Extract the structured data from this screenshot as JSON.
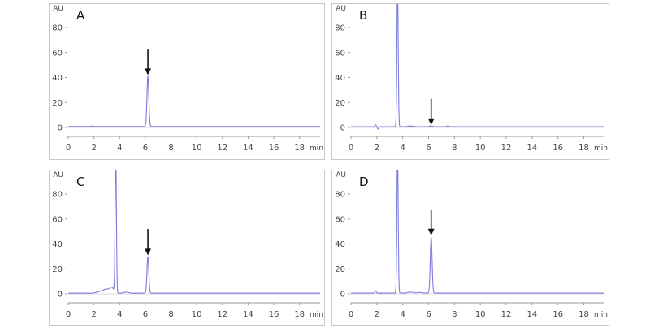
{
  "chart_data": [
    {
      "type": "line",
      "panel_label": "A",
      "ylabel": "AU",
      "xlabel": "min",
      "xlim": [
        0,
        19.6
      ],
      "ylim": [
        -4,
        100
      ],
      "xticks": [
        0,
        2,
        4,
        6,
        8,
        10,
        12,
        14,
        16,
        18
      ],
      "yticks": [
        0,
        20,
        40,
        60,
        80
      ],
      "series_color": "#7b7be0",
      "baseline": 0.8,
      "peaks": [
        {
          "rt": 1.9,
          "height": 0.6,
          "width": 0.05
        },
        {
          "rt": 6.2,
          "height": 40.5,
          "width": 0.07
        }
      ],
      "arrow": {
        "x": 6.2,
        "y_top": 63,
        "y_tip": 42
      }
    },
    {
      "type": "line",
      "panel_label": "B",
      "ylabel": "AU",
      "xlabel": "min",
      "xlim": [
        0,
        19.6
      ],
      "ylim": [
        -4,
        100
      ],
      "xticks": [
        0,
        2,
        4,
        6,
        8,
        10,
        12,
        14,
        16,
        18
      ],
      "yticks": [
        0,
        20,
        40,
        60,
        80
      ],
      "series_color": "#7b7be0",
      "baseline": 0.6,
      "peaks": [
        {
          "rt": 1.9,
          "height": 1.5,
          "width": 0.05
        },
        {
          "rt": 2.1,
          "height": -2,
          "width": 0.05
        },
        {
          "rt": 3.6,
          "height": 115,
          "width": 0.05
        },
        {
          "rt": 4.6,
          "height": 0.6,
          "width": 0.2
        },
        {
          "rt": 6.2,
          "height": 0.8,
          "width": 0.1
        },
        {
          "rt": 7.5,
          "height": 0.7,
          "width": 0.08
        }
      ],
      "arrow": {
        "x": 6.2,
        "y_top": 23,
        "y_tip": 2
      }
    },
    {
      "type": "line",
      "panel_label": "C",
      "ylabel": "AU",
      "xlabel": "min",
      "xlim": [
        0,
        19.6
      ],
      "ylim": [
        -4,
        100
      ],
      "xticks": [
        0,
        2,
        4,
        6,
        8,
        10,
        12,
        14,
        16,
        18
      ],
      "yticks": [
        0,
        20,
        40,
        60,
        80
      ],
      "series_color": "#7b7be0",
      "baseline": 0.5,
      "peaks": [
        {
          "rt": 2.5,
          "height": 1.2,
          "width": 0.3
        },
        {
          "rt": 3.0,
          "height": 3.0,
          "width": 0.25
        },
        {
          "rt": 3.4,
          "height": 4.0,
          "width": 0.15
        },
        {
          "rt": 3.7,
          "height": 115,
          "width": 0.05
        },
        {
          "rt": 4.5,
          "height": 0.8,
          "width": 0.2
        },
        {
          "rt": 6.2,
          "height": 29.5,
          "width": 0.07
        }
      ],
      "arrow": {
        "x": 6.2,
        "y_top": 52,
        "y_tip": 31
      }
    },
    {
      "type": "line",
      "panel_label": "D",
      "ylabel": "AU",
      "xlabel": "min",
      "xlim": [
        0,
        19.6
      ],
      "ylim": [
        -4,
        100
      ],
      "xticks": [
        0,
        2,
        4,
        6,
        8,
        10,
        12,
        14,
        16,
        18
      ],
      "yticks": [
        0,
        20,
        40,
        60,
        80
      ],
      "series_color": "#7b7be0",
      "baseline": 0.6,
      "peaks": [
        {
          "rt": 1.9,
          "height": 2.0,
          "width": 0.05
        },
        {
          "rt": 3.6,
          "height": 115,
          "width": 0.05
        },
        {
          "rt": 4.6,
          "height": 0.8,
          "width": 0.2
        },
        {
          "rt": 5.3,
          "height": 0.6,
          "width": 0.15
        },
        {
          "rt": 6.2,
          "height": 45,
          "width": 0.07
        }
      ],
      "arrow": {
        "x": 6.2,
        "y_top": 67,
        "y_tip": 47
      }
    }
  ]
}
